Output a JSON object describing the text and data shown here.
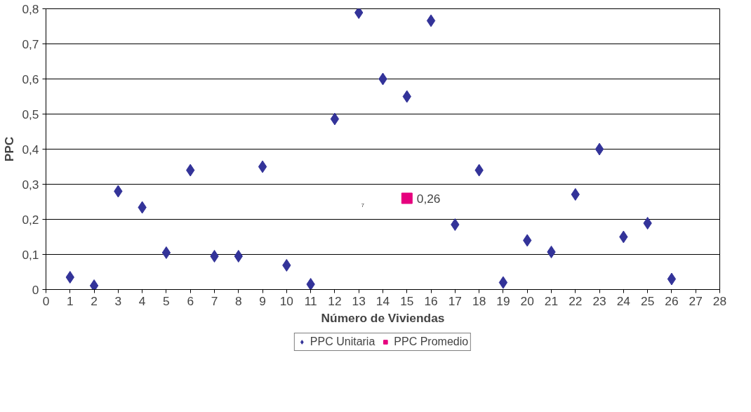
{
  "chart_data": {
    "type": "scatter",
    "xlabel": "Número de Viviendas",
    "ylabel": "PPC",
    "xlim": [
      0,
      28
    ],
    "xticks": [
      0,
      1,
      2,
      3,
      4,
      5,
      6,
      7,
      8,
      9,
      10,
      11,
      12,
      13,
      14,
      15,
      16,
      17,
      18,
      19,
      20,
      21,
      22,
      23,
      24,
      25,
      26,
      27,
      28
    ],
    "ylim": [
      0,
      0.8
    ],
    "yticks": [
      {
        "value": 0,
        "label": "0"
      },
      {
        "value": 0.1,
        "label": "0,1"
      },
      {
        "value": 0.2,
        "label": "0,2"
      },
      {
        "value": 0.3,
        "label": "0,3"
      },
      {
        "value": 0.4,
        "label": "0,4"
      },
      {
        "value": 0.5,
        "label": "0,5"
      },
      {
        "value": 0.6,
        "label": "0,6"
      },
      {
        "value": 0.7,
        "label": "0,7"
      },
      {
        "value": 0.8,
        "label": "0,8"
      }
    ],
    "grid": "y",
    "legend": "bottom",
    "series": [
      {
        "name": "PPC Unitaria",
        "color": "#333399",
        "marker": "diamond",
        "x": [
          1,
          2,
          3,
          4,
          5,
          6,
          7,
          8,
          9,
          10,
          11,
          12,
          13,
          14,
          15,
          16,
          17,
          18,
          19,
          20,
          21,
          22,
          23,
          24,
          25,
          26
        ],
        "values": [
          0.035,
          0.011,
          0.28,
          0.234,
          0.105,
          0.34,
          0.095,
          0.095,
          0.35,
          0.069,
          0.015,
          0.486,
          0.789,
          0.6,
          0.55,
          0.766,
          0.185,
          0.34,
          0.02,
          0.14,
          0.107,
          0.271,
          0.4,
          0.15,
          0.189,
          0.03
        ]
      },
      {
        "name": "PPC Promedio",
        "color": "#e6007e",
        "marker": "square",
        "x": [
          15
        ],
        "values": [
          0.26
        ],
        "value_labels": [
          "0,26"
        ]
      }
    ],
    "annotations": [
      "7"
    ]
  }
}
